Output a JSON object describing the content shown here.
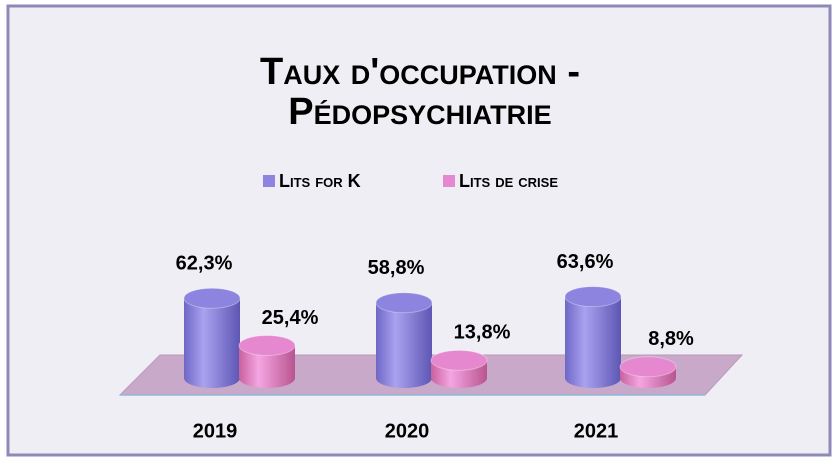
{
  "chart_data": {
    "type": "bar3d",
    "title": [
      "Taux d'occupation -",
      "Pédopsychiatrie"
    ],
    "categories": [
      "2019",
      "2020",
      "2021"
    ],
    "series": [
      {
        "name": "Lits for K",
        "color": "#8c84de",
        "values": [
          62.3,
          58.8,
          63.6
        ],
        "value_labels": [
          "62,3%",
          "58,8%",
          "63,6%"
        ]
      },
      {
        "name": "Lits de crise",
        "color": "#e688cf",
        "values": [
          25.4,
          13.8,
          8.8
        ],
        "value_labels": [
          "25,4%",
          "13,8%",
          "8,8%"
        ]
      }
    ],
    "legend": "top"
  }
}
